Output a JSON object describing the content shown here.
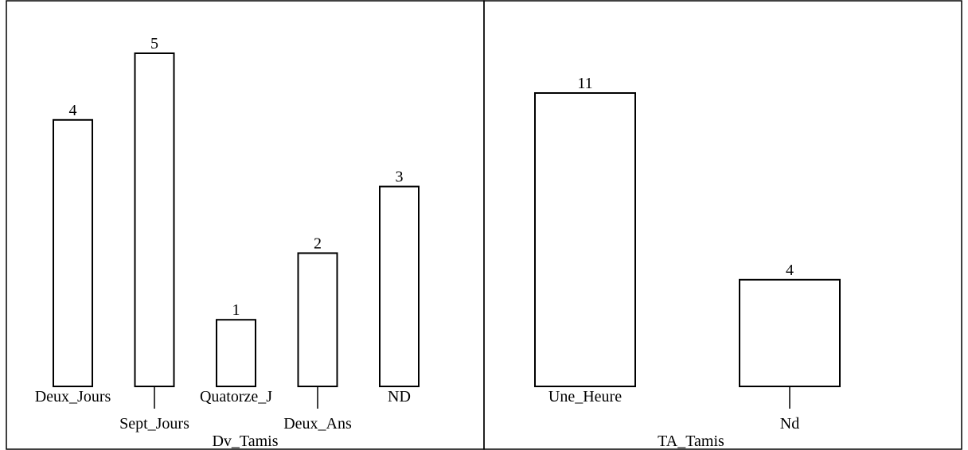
{
  "chart_data": [
    {
      "type": "bar",
      "xlabel": "Dv_Tamis",
      "categories": [
        "Deux_Jours",
        "Sept_Jours",
        "Quatorze_J",
        "Deux_Ans",
        "ND"
      ],
      "values": [
        4,
        5,
        1,
        2,
        3
      ],
      "ylim": [
        0,
        5
      ],
      "grid": false
    },
    {
      "type": "bar",
      "xlabel": "TA_Tamis",
      "categories": [
        "Une_Heure",
        "Nd"
      ],
      "values": [
        11,
        4
      ],
      "ylim": [
        0,
        11
      ],
      "grid": false
    }
  ]
}
